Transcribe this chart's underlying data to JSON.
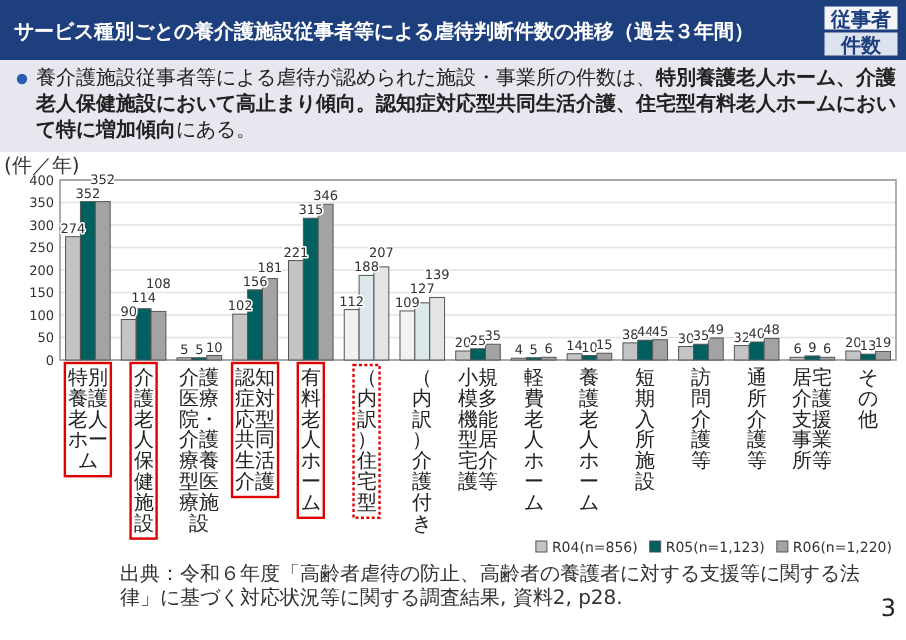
{
  "chart_data": {
    "type": "bar",
    "title": "サービス種別ごとの養介護施設従事者等による虐待判断件数の推移（過去３年間）",
    "subtitle": "養介護施設従事者等による虐待が認められた施設・事業所の件数は、**特別養護老人ホーム、介護老人保健施設において高止まり傾向。認知症対応型共同生活介護、住宅型有料老人ホームにおいて特に増加傾向**にある。",
    "ylabel": "(件／年)",
    "annotations": [
      "従事者",
      "件数",
      "出典：令和６年度「高齢者虐待の防止、高齢者の養護者に対する支援等に関する法律」に基づく対応状況等に関する調査結果, 資料2, p28.",
      "3"
    ],
    "categories": [
      "特別養護老人ホーム",
      "介護老人保健施設",
      "介護医療院・介護療養型医療施設",
      "認知症対応型共同生活介護",
      "有料老人ホーム",
      "（内訳）住宅型",
      "（内訳）介護付き",
      "小規模多機能型居宅介護等",
      "軽費老人ホーム",
      "養護老人ホーム",
      "短期入所施設",
      "訪問介護等",
      "通所介護等",
      "居宅介護支援事業所等",
      "その他"
    ],
    "series": [
      {
        "name": "R04(n=856)",
        "color": "#c4c4c4",
        "colors": [
          "#c4c4c4",
          "#c4c4c4",
          "#c4c4c4",
          "#c4c4c4",
          "#c4c4c4",
          "#f2f2f2",
          "#f2f2f2",
          "#c4c4c4",
          "#c4c4c4",
          "#c4c4c4",
          "#c4c4c4",
          "#c4c4c4",
          "#c4c4c4",
          "#c4c4c4",
          "#c4c4c4"
        ],
        "values": [
          274,
          90,
          5,
          102,
          221,
          112,
          109,
          20,
          4,
          14,
          38,
          30,
          32,
          6,
          20
        ]
      },
      {
        "name": "R05(n=1,123)",
        "color": "#005f5f",
        "colors": [
          "#005f5f",
          "#005f5f",
          "#005f5f",
          "#005f5f",
          "#005f5f",
          "#dce9ec",
          "#dce9ec",
          "#005f5f",
          "#005f5f",
          "#005f5f",
          "#005f5f",
          "#005f5f",
          "#005f5f",
          "#005f5f",
          "#005f5f"
        ],
        "values": [
          352,
          114,
          5,
          156,
          315,
          188,
          127,
          25,
          5,
          10,
          44,
          35,
          40,
          9,
          13
        ]
      },
      {
        "name": "R06(n=1,220)",
        "color": "#a3a3a3",
        "colors": [
          "#a3a3a3",
          "#a3a3a3",
          "#a3a3a3",
          "#a3a3a3",
          "#a3a3a3",
          "#e4e4e4",
          "#e4e4e4",
          "#a3a3a3",
          "#a3a3a3",
          "#a3a3a3",
          "#a3a3a3",
          "#a3a3a3",
          "#a3a3a3",
          "#a3a3a3",
          "#a3a3a3"
        ],
        "values": [
          352,
          108,
          10,
          181,
          346,
          207,
          139,
          35,
          6,
          15,
          45,
          49,
          48,
          6,
          19
        ]
      }
    ],
    "ylim": [
      0,
      400
    ],
    "yticks": [
      0,
      50,
      100,
      150,
      200,
      250,
      300,
      350,
      400
    ],
    "grid": "y",
    "legend": "bottom right",
    "data_labels": true
  }
}
